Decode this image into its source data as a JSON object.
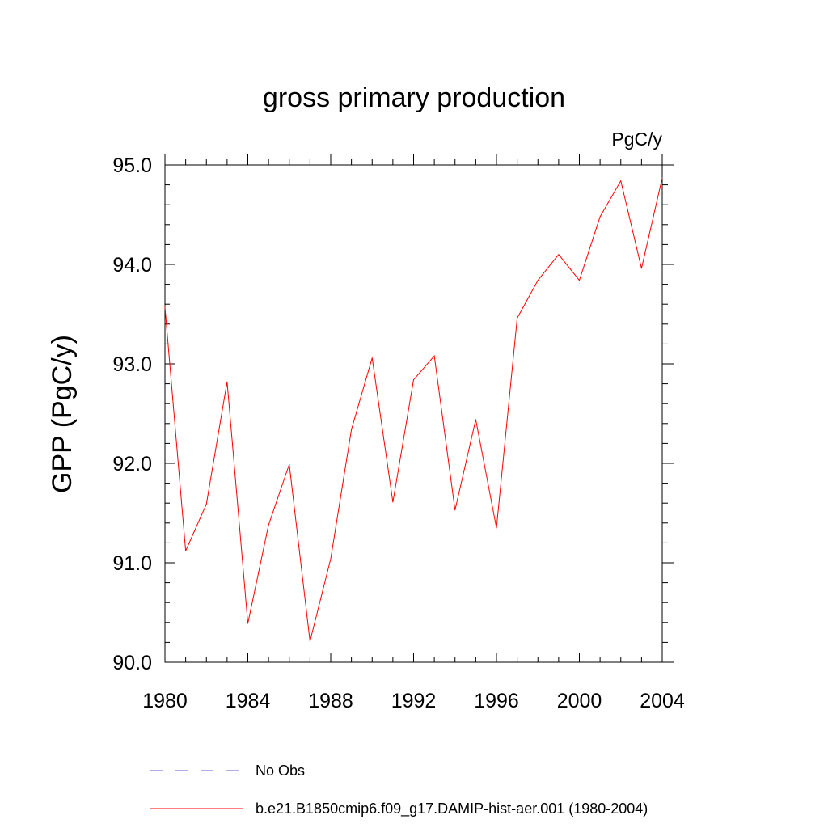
{
  "chart_data": {
    "type": "line",
    "title": "gross primary production",
    "units_label": "PgC/y",
    "xlabel": "",
    "ylabel": "GPP  (PgC/y)",
    "xlim": [
      1980,
      2004
    ],
    "ylim": [
      90.0,
      95.0
    ],
    "x_ticks": [
      1980,
      1984,
      1988,
      1992,
      1996,
      2000,
      2004
    ],
    "y_ticks": [
      "90.0",
      "91.0",
      "92.0",
      "93.0",
      "94.0",
      "95.0"
    ],
    "grid": false,
    "legend_position": "bottom",
    "legend": [
      {
        "label": "No Obs",
        "color": "#6a5acd",
        "style": "dashed"
      },
      {
        "label": "b.e21.B1850cmip6.f09_g17.DAMIP-hist-aer.001 (1980-2004)",
        "color": "#ff0000",
        "style": "solid"
      }
    ],
    "series": [
      {
        "name": "b.e21.B1850cmip6.f09_g17.DAMIP-hist-aer.001 (1980-2004)",
        "color": "#ff0000",
        "x": [
          1980,
          1981,
          1982,
          1983,
          1984,
          1985,
          1986,
          1987,
          1988,
          1989,
          1990,
          1991,
          1992,
          1993,
          1994,
          1995,
          1996,
          1997,
          1998,
          1999,
          2000,
          2001,
          2002,
          2003,
          2004
        ],
        "values": [
          93.57,
          91.12,
          91.59,
          92.82,
          90.39,
          91.38,
          91.99,
          90.21,
          91.04,
          92.34,
          93.06,
          91.61,
          92.84,
          93.08,
          91.53,
          92.44,
          91.35,
          93.46,
          93.84,
          94.1,
          93.84,
          94.48,
          94.84,
          93.96,
          94.87
        ]
      }
    ]
  }
}
